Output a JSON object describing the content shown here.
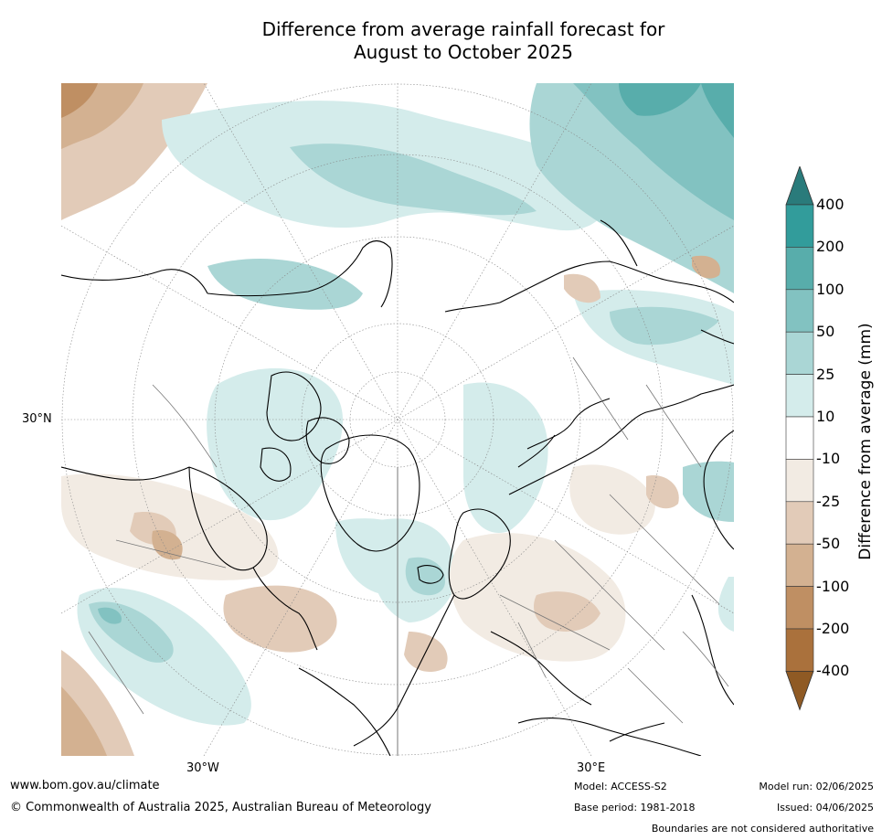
{
  "title_line1": "Difference from average rainfall forecast for",
  "title_line2": "August to October 2025",
  "map": {
    "projection": "north-polar-stereographic",
    "lat_label": "30°N",
    "lon_labels": [
      "30°W",
      "30°E"
    ]
  },
  "colorbar": {
    "title": "Difference from average (mm)",
    "ticks": [
      "400",
      "200",
      "100",
      "50",
      "25",
      "10",
      "-10",
      "-25",
      "-50",
      "-100",
      "-200",
      "-400"
    ],
    "colors": [
      "#2a7b7b",
      "#329c9b",
      "#58adab",
      "#82c2c1",
      "#aad6d5",
      "#d4eceb",
      "#ffffff",
      "#f2ebe3",
      "#e2cbb8",
      "#d3b191",
      "#bf8f63",
      "#aa713c",
      "#8f5a24"
    ]
  },
  "footer": {
    "website": "www.bom.gov.au/climate",
    "copyright": "© Commonwealth of Australia 2025, Australian Bureau of Meteorology",
    "model": "Model: ACCESS-S2",
    "base_period": "Base period: 1981-2018",
    "model_run": "Model run: 02/06/2025",
    "issued": "Issued: 04/06/2025",
    "boundaries_note": "Boundaries are not considered authoritative"
  }
}
